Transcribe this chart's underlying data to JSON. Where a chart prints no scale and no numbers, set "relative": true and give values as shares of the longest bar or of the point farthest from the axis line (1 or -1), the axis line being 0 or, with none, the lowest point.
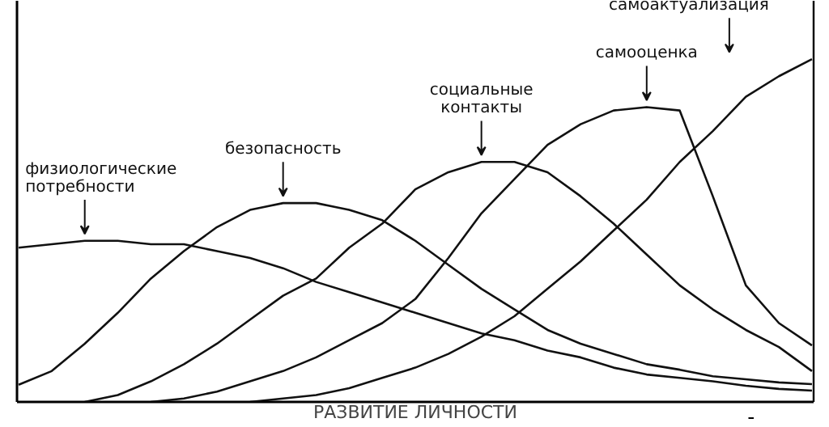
{
  "chart_data": {
    "type": "line",
    "relative": true,
    "xlabel": "РАЗВИТИЕ ЛИЧНОСТИ",
    "categories": [
      null,
      null,
      null,
      null,
      null,
      null,
      null,
      null,
      null,
      null,
      null,
      null,
      null,
      null,
      null,
      null,
      null,
      null,
      null,
      null,
      null,
      null,
      null,
      null,
      null
    ],
    "series": [
      {
        "name": "физиологические\nпотребности",
        "color": "#111111",
        "values": [
          0.45,
          0.46,
          0.47,
          0.47,
          0.46,
          0.46,
          0.44,
          0.42,
          0.39,
          0.35,
          0.32,
          0.29,
          0.26,
          0.23,
          0.2,
          0.18,
          0.15,
          0.13,
          0.1,
          0.08,
          0.07,
          0.06,
          0.047,
          0.038,
          0.033
        ]
      },
      {
        "name": "безопасность",
        "color": "#111111",
        "values": [
          0.05,
          0.09,
          0.17,
          0.26,
          0.36,
          0.44,
          0.51,
          0.56,
          0.58,
          0.58,
          0.56,
          0.53,
          0.47,
          0.4,
          0.33,
          0.27,
          0.21,
          0.17,
          0.14,
          0.11,
          0.094,
          0.075,
          0.066,
          0.057,
          0.052
        ]
      },
      {
        "name": "социальные\nконтакты",
        "color": "#111111",
        "values": [
          null,
          null,
          0,
          0.02,
          0.06,
          0.11,
          0.17,
          0.24,
          0.31,
          0.36,
          0.45,
          0.52,
          0.62,
          0.67,
          0.7,
          0.7,
          0.67,
          0.6,
          0.52,
          0.43,
          0.34,
          0.27,
          0.21,
          0.16,
          0.09
        ]
      },
      {
        "name": "самооценка",
        "color": "#111111",
        "values": [
          null,
          null,
          null,
          null,
          0,
          0.01,
          0.03,
          0.06,
          0.09,
          0.13,
          0.18,
          0.23,
          0.3,
          0.42,
          0.55,
          0.65,
          0.75,
          0.81,
          0.85,
          0.86,
          0.85,
          0.6,
          0.34,
          0.23,
          0.165
        ]
      },
      {
        "name": "самоактуализация",
        "color": "#111111",
        "values": [
          null,
          null,
          null,
          null,
          null,
          null,
          null,
          0,
          0.01,
          0.02,
          0.04,
          0.07,
          0.1,
          0.14,
          0.19,
          0.25,
          0.33,
          0.41,
          0.5,
          0.59,
          0.7,
          0.79,
          0.89,
          0.95,
          1.0
        ]
      }
    ]
  }
}
